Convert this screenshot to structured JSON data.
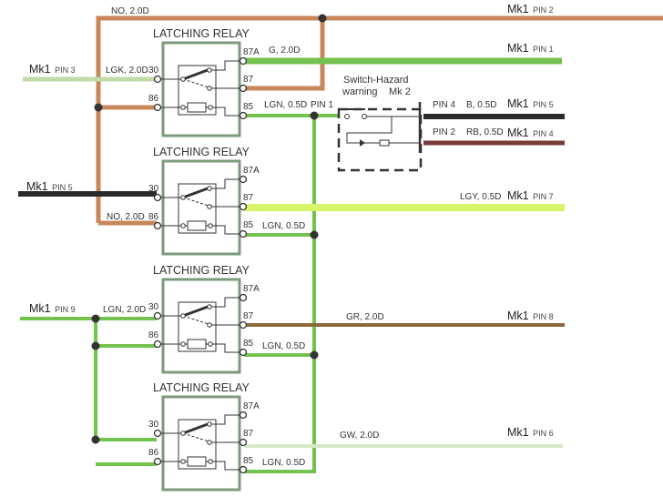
{
  "colors": {
    "brown": "#c8875a",
    "green": "#74c24e",
    "light_green": "#c2d9a8",
    "lime": "#d6f56a",
    "black": "#2a2a2a",
    "maroon": "#7a3b36",
    "gray_brown": "#8a6a3a",
    "gw": "#d5e8c8",
    "relay_box": "#7d9a7d"
  },
  "relay_title": "LATCHING RELAY",
  "terminals": {
    "t30": "30",
    "t86": "86",
    "t87a": "87A",
    "t87": "87",
    "t85": "85"
  },
  "wires": {
    "top_no": "NO, 2.0D",
    "g": "G, 2.0D",
    "lgk": "LGK, 2.0D",
    "lgn1": "LGN, 0.5D",
    "pin1": "PIN 1",
    "no2": "NO, 2.0D",
    "lgy": "LGY, 0.5D",
    "lgn2": "LGN, 0.5D",
    "lgn_in": "LGN, 2.0D",
    "gr": "GR, 2.0D",
    "lgn3": "LGN, 0.5D",
    "gw": "GW, 2.0D",
    "lgn4": "LGN, 0.5D",
    "b": "B, 0.5D",
    "rb": "RB, 0.5D",
    "pin4": "PIN 4",
    "pin2": "PIN 2"
  },
  "switch": {
    "line1": "Switch-Hazard",
    "line2": "warning",
    "mk": "Mk 2"
  },
  "connectors": {
    "mk": "Mk1",
    "pin2": "PIN 2",
    "pin1": "PIN 1",
    "pin3": "PIN 3",
    "pin5a": "PIN 5",
    "pin5b": "PIN 5",
    "pin4": "PIN 4",
    "pin7": "PIN 7",
    "pin9": "PIN 9",
    "pin8": "PIN 8",
    "pin6": "PIN 6"
  }
}
